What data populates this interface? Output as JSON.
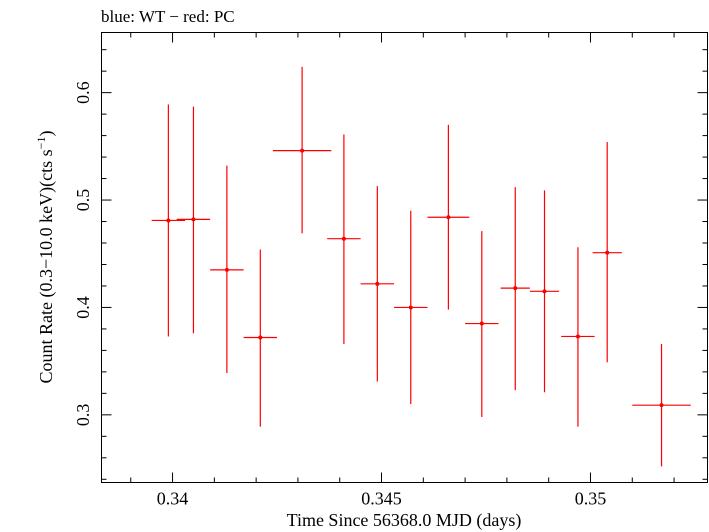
{
  "chart_data": {
    "type": "scatter",
    "title": "blue: WT − red: PC",
    "xlabel": "Time Since 56368.0 MJD (days)",
    "ylabel_main": "Count Rate (0.3−10.0 keV)(cts s",
    "ylabel_sup": "−1",
    "ylabel_close": ")",
    "xlim": [
      0.3383,
      0.3528
    ],
    "ylim": [
      0.237,
      0.656
    ],
    "x_ticks": [
      0.34,
      0.345,
      0.35
    ],
    "x_tick_labels": [
      "0.34",
      "0.345",
      "0.35"
    ],
    "x_minor_step": 0.001,
    "y_ticks": [
      0.3,
      0.4,
      0.5,
      0.6
    ],
    "y_tick_labels": [
      "0.3",
      "0.4",
      "0.5",
      "0.6"
    ],
    "y_minor_step": 0.02,
    "grid": false,
    "series": [
      {
        "color": "#ff0000",
        "points": [
          {
            "x": 0.3399,
            "xerr": 0.0004,
            "y": 0.481,
            "ylo": 0.373,
            "yhi": 0.589
          },
          {
            "x": 0.3405,
            "xerr": 0.0004,
            "y": 0.482,
            "ylo": 0.376,
            "yhi": 0.587
          },
          {
            "x": 0.3413,
            "xerr": 0.0004,
            "y": 0.435,
            "ylo": 0.339,
            "yhi": 0.532
          },
          {
            "x": 0.3421,
            "xerr": 0.0004,
            "y": 0.372,
            "ylo": 0.289,
            "yhi": 0.454
          },
          {
            "x": 0.3431,
            "xerr": 0.0007,
            "y": 0.546,
            "ylo": 0.469,
            "yhi": 0.624
          },
          {
            "x": 0.3441,
            "xerr": 0.0004,
            "y": 0.464,
            "ylo": 0.366,
            "yhi": 0.561
          },
          {
            "x": 0.3449,
            "xerr": 0.0004,
            "y": 0.422,
            "ylo": 0.331,
            "yhi": 0.513
          },
          {
            "x": 0.3457,
            "xerr": 0.0004,
            "y": 0.4,
            "ylo": 0.31,
            "yhi": 0.49
          },
          {
            "x": 0.3466,
            "xerr": 0.0005,
            "y": 0.484,
            "ylo": 0.398,
            "yhi": 0.57
          },
          {
            "x": 0.3474,
            "xerr": 0.0004,
            "y": 0.385,
            "ylo": 0.298,
            "yhi": 0.471
          },
          {
            "x": 0.3482,
            "xerr": 0.00035,
            "y": 0.418,
            "ylo": 0.323,
            "yhi": 0.512
          },
          {
            "x": 0.3489,
            "xerr": 0.00035,
            "y": 0.415,
            "ylo": 0.321,
            "yhi": 0.509
          },
          {
            "x": 0.3497,
            "xerr": 0.0004,
            "y": 0.373,
            "ylo": 0.289,
            "yhi": 0.456
          },
          {
            "x": 0.3504,
            "xerr": 0.00035,
            "y": 0.451,
            "ylo": 0.349,
            "yhi": 0.554
          },
          {
            "x": 0.3517,
            "xerr": 0.0007,
            "y": 0.309,
            "ylo": 0.252,
            "yhi": 0.366
          }
        ]
      }
    ]
  }
}
